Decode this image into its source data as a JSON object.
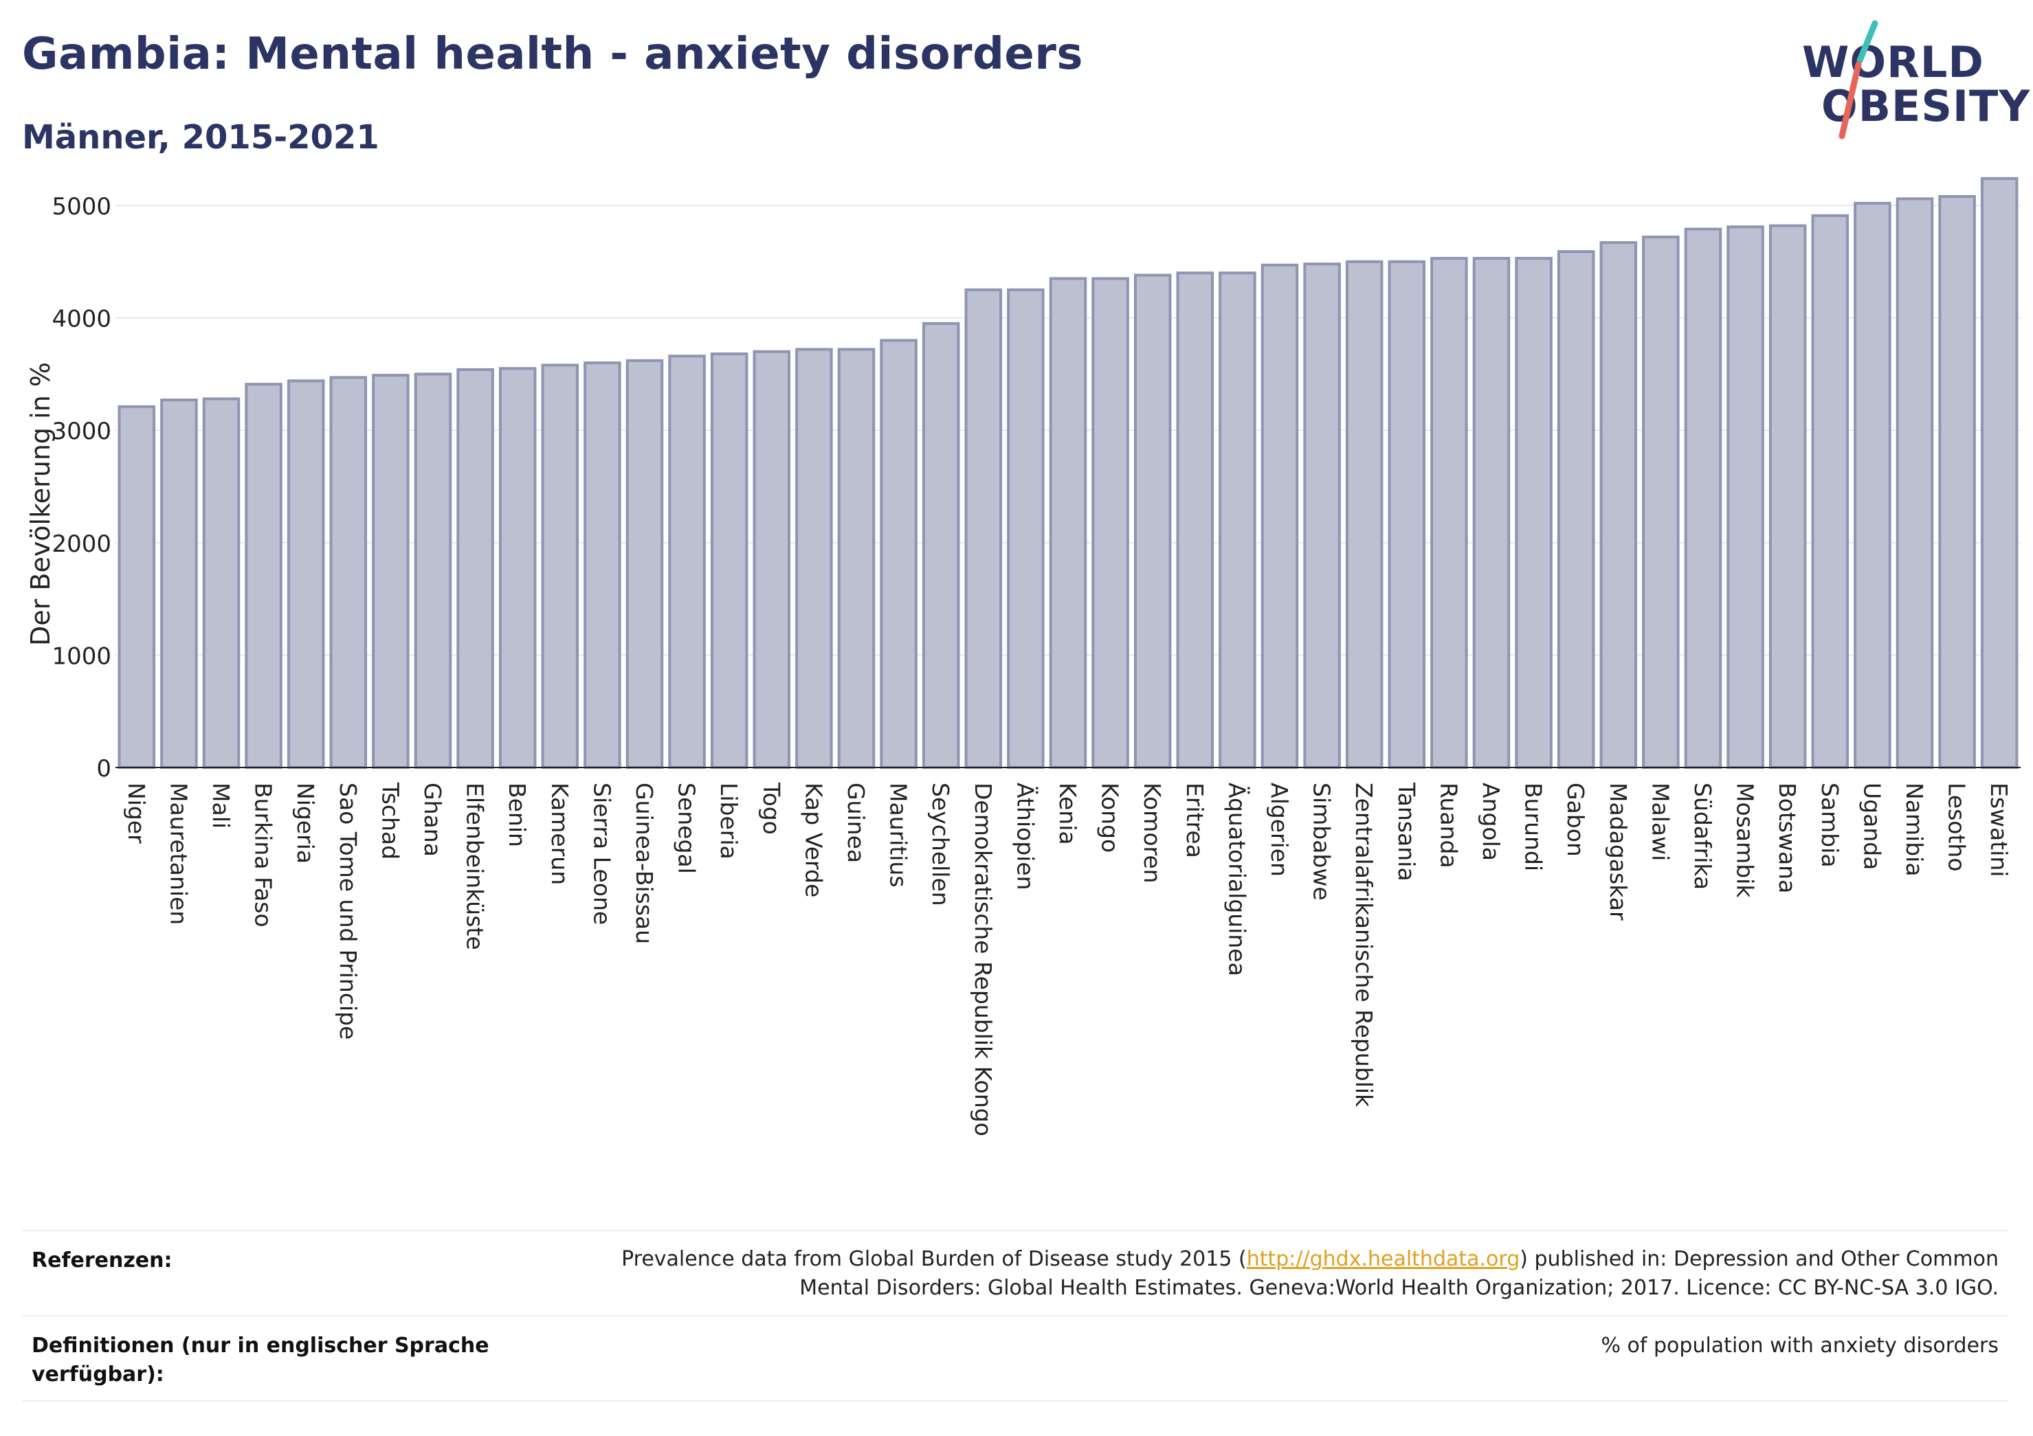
{
  "header": {
    "title": "Gambia: Mental health - anxiety disorders",
    "subtitle": "Männer, 2015-2021"
  },
  "logo": {
    "line1": "WORLD",
    "line2": "OBESITY",
    "slash_colors": [
      "#3fbfb5",
      "#e8655a"
    ]
  },
  "colors": {
    "title": "#2b3463",
    "bar_fill": "#bcc0d0",
    "bar_stroke": "#8e94b2",
    "grid": "#e6e7ee",
    "link": "#e0a020"
  },
  "chart_data": {
    "type": "bar",
    "title": "",
    "ylabel": "Der Bevölkerung in %",
    "xlabel": "",
    "ylim": [
      0,
      5300
    ],
    "yticks": [
      0,
      1000,
      2000,
      3000,
      4000,
      5000
    ],
    "grid": true,
    "categories": [
      "Niger",
      "Mauretanien",
      "Mali",
      "Burkina Faso",
      "Nigeria",
      "Sao Tome und Principe",
      "Tschad",
      "Ghana",
      "Elfenbeinküste",
      "Benin",
      "Kamerun",
      "Sierra Leone",
      "Guinea-Bissau",
      "Senegal",
      "Liberia",
      "Togo",
      "Kap Verde",
      "Guinea",
      "Mauritius",
      "Seychellen",
      "Demokratische Republik Kongo",
      "Äthiopien",
      "Kenia",
      "Kongo",
      "Komoren",
      "Eritrea",
      "Äquatorialguinea",
      "Algerien",
      "Simbabwe",
      "Zentralafrikanische Republik",
      "Tansania",
      "Ruanda",
      "Angola",
      "Burundi",
      "Gabon",
      "Madagaskar",
      "Malawi",
      "Südafrika",
      "Mosambik",
      "Botswana",
      "Sambia",
      "Uganda",
      "Namibia",
      "Lesotho",
      "Eswatini"
    ],
    "values": [
      3210,
      3270,
      3280,
      3410,
      3440,
      3470,
      3490,
      3500,
      3540,
      3550,
      3580,
      3600,
      3620,
      3660,
      3680,
      3700,
      3720,
      3720,
      3800,
      3950,
      4250,
      4250,
      4350,
      4350,
      4380,
      4400,
      4400,
      4470,
      4480,
      4500,
      4500,
      4530,
      4530,
      4530,
      4590,
      4670,
      4720,
      4790,
      4810,
      4820,
      4910,
      5020,
      5060,
      5080,
      5240
    ]
  },
  "footer": {
    "references_label": "Referenzen:",
    "references_line1_pre": "Prevalence data from Global Burden of Disease study 2015 (",
    "references_link": "http://ghdx.healthdata.org",
    "references_line1_post": ") published in: Depression and Other Common",
    "references_line2": "Mental Disorders: Global Health Estimates. Geneva:World Health Organization; 2017. Licence: CC BY-NC-SA 3.0 IGO.",
    "definitions_label_line1": "Definitionen (nur in englischer Sprache",
    "definitions_label_line2": "verfügbar):",
    "definitions_text": "% of population with anxiety disorders"
  }
}
